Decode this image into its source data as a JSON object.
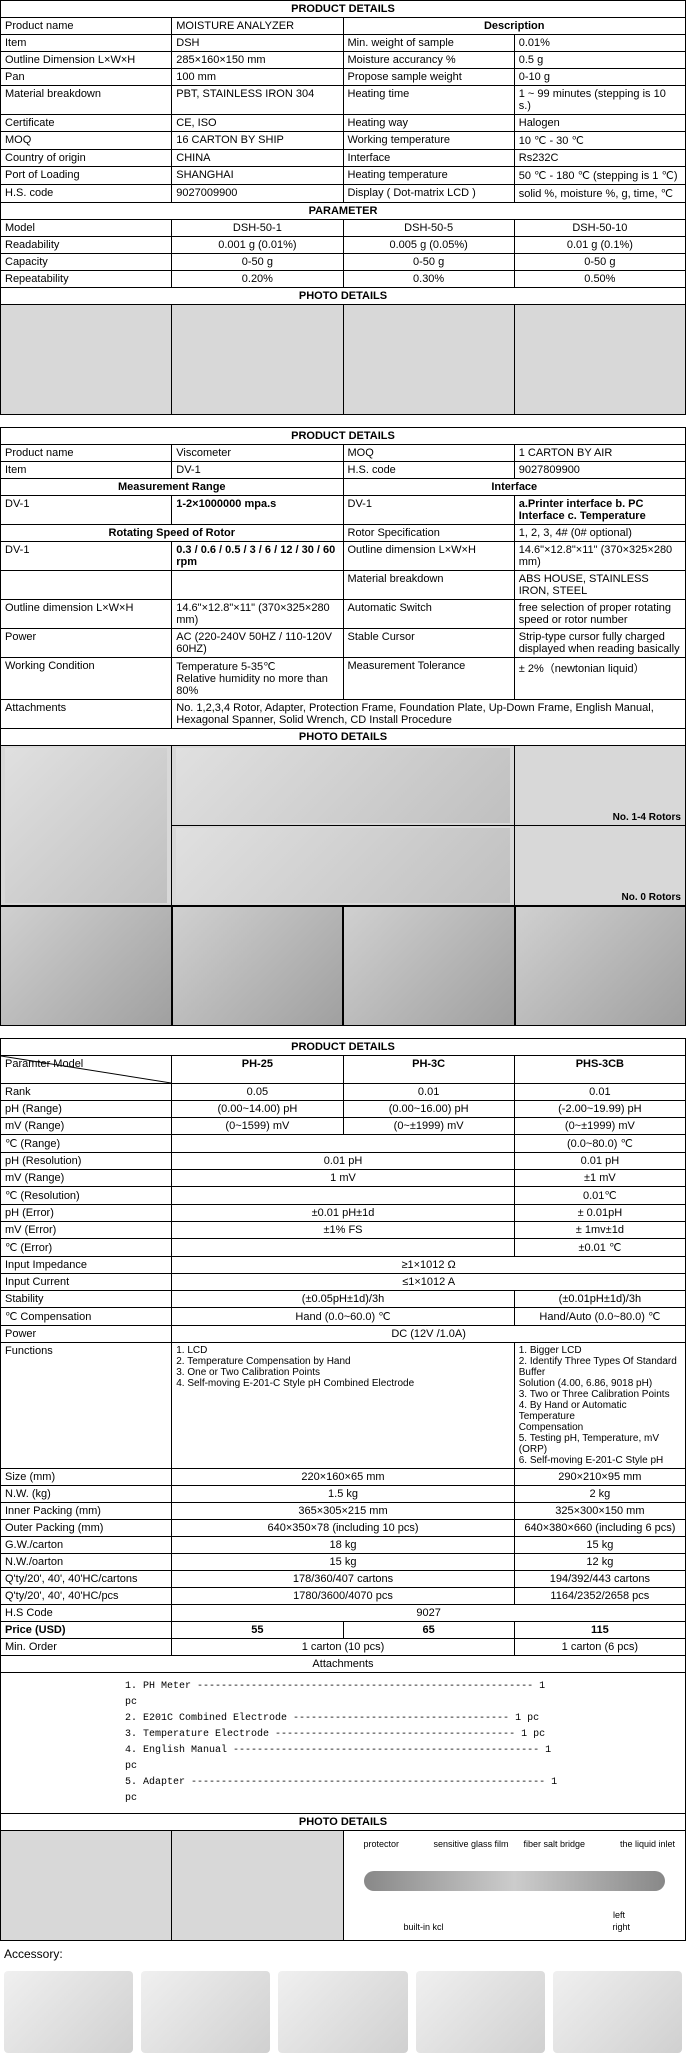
{
  "section1": {
    "header": "PRODUCT DETAILS",
    "descHeader": "Description",
    "paramHeader": "PARAMETER",
    "photoHeader": "PHOTO DETAILS",
    "rows": [
      [
        "Product name",
        "MOISTURE ANALYZER"
      ],
      [
        "Item",
        "DSH",
        "Min. weight of sample",
        "0.01%"
      ],
      [
        "Outline Dimension L×W×H",
        "285×160×150 mm",
        "Moisture accurancy %",
        "0.5 g"
      ],
      [
        "Pan",
        "100 mm",
        "Propose sample weight",
        "0-10 g"
      ],
      [
        "Material breakdown",
        "PBT, STAINLESS IRON 304",
        "Heating time",
        "1 ~ 99 minutes (stepping is 10 s.)"
      ],
      [
        "Certificate",
        "CE, ISO",
        "Heating way",
        "Halogen"
      ],
      [
        "MOQ",
        "16 CARTON BY SHIP",
        "Working temperature",
        "10 ℃ - 30 ℃"
      ],
      [
        "Country of origin",
        "CHINA",
        "Interface",
        "Rs232C"
      ],
      [
        "Port of Loading",
        "SHANGHAI",
        "Heating temperature",
        "50 ℃ - 180 ℃ (stepping is 1 ℃)"
      ],
      [
        "H.S. code",
        "9027009900",
        "Display ( Dot-matrix LCD )",
        "solid %, moisture %, g, time, ℃"
      ]
    ],
    "paramRows": [
      [
        "Model",
        "DSH-50-1",
        "DSH-50-5",
        "DSH-50-10"
      ],
      [
        "Readability",
        "0.001 g (0.01%)",
        "0.005 g (0.05%)",
        "0.01 g (0.1%)"
      ],
      [
        "Capacity",
        "0-50 g",
        "0-50 g",
        "0-50 g"
      ],
      [
        "Repeatability",
        "0.20%",
        "0.30%",
        "0.50%"
      ]
    ]
  },
  "section2": {
    "header": "PRODUCT DETAILS",
    "photoHeader": "PHOTO DETAILS",
    "rotorsLabel1": "No. 1-4 Rotors",
    "rotorsLabel2": "No. 0 Rotors",
    "topRows": [
      [
        "Product name",
        "Viscometer",
        "MOQ",
        "1 CARTON BY AIR"
      ],
      [
        "Item",
        "DV-1",
        "H.S. code",
        "9027809900"
      ]
    ],
    "mrHeader": "Measurement Range",
    "ifHeader": "Interface",
    "row3": [
      "DV-1",
      "1-2×1000000 mpa.s",
      "DV-1",
      "a.Printer interface b. PC Interface c. Temperature"
    ],
    "rsHeader": "Rotating Speed of Rotor",
    "row4right": [
      "Rotor Specification",
      "1, 2, 3, 4# (0# optional)"
    ],
    "row5": [
      "DV-1",
      "0.3 / 0.6 / 0.5 / 3 / 6 / 12 / 30 / 60 rpm",
      "Outline dimension  L×W×H",
      "14.6\"×12.8\"×11\" (370×325×280 mm)"
    ],
    "row6right": [
      "Material breakdown",
      "ABS HOUSE, STAINLESS  IRON, STEEL"
    ],
    "row7": [
      "Outline dimension  L×W×H",
      "14.6\"×12.8\"×11\" (370×325×280 mm)",
      "Automatic Switch",
      "free selection of proper rotating speed or rotor number"
    ],
    "row8": [
      "Power",
      "AC (220-240V 50HZ / 110-120V 60HZ)",
      "Stable Cursor",
      "Strip-type cursor fully charged displayed when reading basically"
    ],
    "row9": [
      "Working Condition",
      "Temperature 5-35℃\nRelative humidity no more than 80%",
      "Measurement Tolerance",
      "± 2%（newtonian liquid）"
    ],
    "row10": [
      "Attachments",
      "No. 1,2,3,4 Rotor, Adapter, Protection Frame, Foundation Plate, Up-Down Frame, English Manual, Hexagonal Spanner, Solid Wrench, CD Install Procedure"
    ]
  },
  "section3": {
    "header": "PRODUCT DETAILS",
    "paramModel": "Paramter            Model",
    "models": [
      "PH-25",
      "PH-3C",
      "PHS-3CB"
    ],
    "rows": [
      [
        "Rank",
        "0.05",
        "0.01",
        "0.01"
      ],
      [
        "pH (Range)",
        "(0.00~14.00) pH",
        "(0.00~16.00) pH",
        "(-2.00~19.99) pH"
      ],
      [
        "mV (Range)",
        "(0~1599) mV",
        "(0~±1999) mV",
        "(0~±1999) mV"
      ],
      [
        "℃ (Range)",
        "",
        "",
        "(0.0~80.0) ℃"
      ],
      [
        "pH (Resolution)",
        "0.01 pH",
        "",
        "0.01 pH"
      ],
      [
        "mV (Range)",
        "1 mV",
        "",
        "±1 mV"
      ],
      [
        "℃ (Resolution)",
        "",
        "",
        "0.01℃"
      ],
      [
        "pH (Error)",
        "±0.01 pH±1d",
        "",
        "± 0.01pH"
      ],
      [
        "mV (Error)",
        "±1% FS",
        "",
        "± 1mv±1d"
      ],
      [
        "℃ (Error)",
        "",
        "",
        "±0.01 ℃"
      ]
    ],
    "fullRows": [
      [
        "Input Impedance",
        "≥1×1012 Ω"
      ],
      [
        "Input Current",
        "≤1×1012 A"
      ]
    ],
    "row_stab": [
      "Stability",
      "(±0.05pH±1d)/3h",
      "",
      "(±0.01pH±1d)/3h"
    ],
    "row_comp": [
      "℃ Compensation",
      "Hand (0.0~60.0) ℃",
      "",
      "Hand/Auto (0.0~80.0) ℃"
    ],
    "row_power": [
      "Power",
      "DC (12V /1.0A)"
    ],
    "row_func_label": "Functions",
    "func1": "1. LCD\n2. Temperature Compensation by Hand\n3. One or Two Calibration Points\n4. Self-moving E-201-C Style pH Combined Electrode",
    "func2": "1. Bigger LCD\n2. Identify Three Types Of Standard Buffer\nSolution (4.00, 6.86, 9018 pH)\n3. Two or Three Calibration Points\n4. By Hand or Automatic Temperature\nCompensation\n5. Testing pH, Temperature, mV (ORP)\n6. Self-moving E-201-C Style pH",
    "bottomRows": [
      [
        "Size (mm)",
        "220×160×65 mm",
        "",
        "290×210×95 mm"
      ],
      [
        "N.W. (kg)",
        "1.5 kg",
        "",
        "2 kg"
      ],
      [
        "Inner Packing (mm)",
        "365×305×215 mm",
        "",
        "325×300×150 mm"
      ],
      [
        "Outer Packing (mm)",
        "640×350×78 (including 10 pcs)",
        "",
        "640×380×660 (including 6 pcs)"
      ],
      [
        "G.W./carton",
        "18 kg",
        "",
        "15 kg"
      ],
      [
        "N.W./oarton",
        "15 kg",
        "",
        "12 kg"
      ],
      [
        "Q'ty/20', 40', 40'HC/cartons",
        "178/360/407 cartons",
        "",
        "194/392/443 cartons"
      ],
      [
        "Q'ty/20', 40', 40'HC/pcs",
        "1780/3600/4070 pcs",
        "",
        "1164/2352/2658 pcs"
      ]
    ],
    "hsRow": [
      "H.S Code",
      "9027"
    ],
    "priceRow": [
      "Price (USD)",
      "55",
      "65",
      "115"
    ],
    "minOrder": [
      "Min. Order",
      "1 carton (10 pcs)",
      "",
      "1 carton (6 pcs)"
    ],
    "attachHeader": "Attachments",
    "attachments": [
      "1. PH Meter -------------------------------------------------------- 1 pc",
      "2. E201C Combined Electrode ------------------------------------ 1 pc",
      "3. Temperature Electrode ---------------------------------------- 1 pc",
      "4. English Manual --------------------------------------------------- 1 pc",
      "5. Adapter ----------------------------------------------------------- 1 pc"
    ],
    "photoHeader": "PHOTO DETAILS",
    "accessoryLabel": "Accessory:",
    "probeLabels": [
      "protector",
      "sensitive glass film",
      "fiber salt bridge",
      "the liquid inlet",
      "built-in kcl",
      "left",
      "right"
    ]
  }
}
